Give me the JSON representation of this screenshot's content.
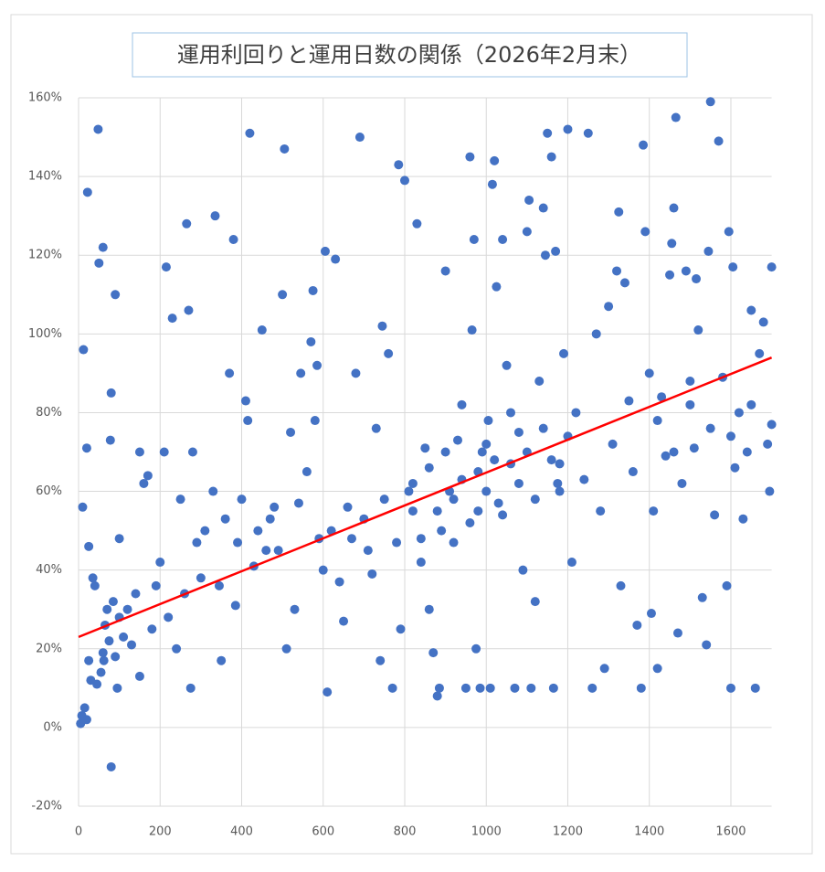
{
  "chart_data": {
    "type": "scatter",
    "title": "運用利回りと運用日数の関係（2026年2月末）",
    "xlim": [
      0,
      1700
    ],
    "xticks": [
      0,
      200,
      400,
      600,
      800,
      1000,
      1200,
      1400,
      1600
    ],
    "ylim": [
      -20,
      160
    ],
    "yticks": [
      {
        "value": -20,
        "label": "-20%"
      },
      {
        "value": 0,
        "label": "0%"
      },
      {
        "value": 20,
        "label": "20%"
      },
      {
        "value": 40,
        "label": "40%"
      },
      {
        "value": 60,
        "label": "60%"
      },
      {
        "value": 80,
        "label": "80%"
      },
      {
        "value": 100,
        "label": "100%"
      },
      {
        "value": 120,
        "label": "120%"
      },
      {
        "value": 140,
        "label": "140%"
      },
      {
        "value": 160,
        "label": "160%"
      }
    ],
    "grid": true,
    "color": "#4472c4",
    "x": [
      5,
      8,
      10,
      12,
      15,
      20,
      22,
      20,
      25,
      25,
      30,
      35,
      40,
      45,
      48,
      50,
      55,
      60,
      60,
      62,
      65,
      70,
      75,
      78,
      80,
      80,
      85,
      90,
      90,
      95,
      100,
      100,
      110,
      120,
      130,
      140,
      150,
      150,
      160,
      170,
      180,
      190,
      200,
      210,
      215,
      220,
      230,
      240,
      250,
      260,
      265,
      270,
      275,
      280,
      290,
      300,
      310,
      330,
      335,
      345,
      350,
      360,
      370,
      380,
      385,
      390,
      400,
      410,
      415,
      420,
      430,
      440,
      450,
      460,
      470,
      480,
      490,
      500,
      505,
      510,
      520,
      530,
      540,
      545,
      560,
      570,
      575,
      580,
      585,
      590,
      600,
      605,
      610,
      620,
      630,
      640,
      650,
      660,
      670,
      680,
      690,
      700,
      710,
      720,
      730,
      740,
      745,
      750,
      760,
      770,
      780,
      785,
      790,
      800,
      810,
      820,
      830,
      840,
      850,
      860,
      870,
      880,
      885,
      890,
      900,
      910,
      920,
      930,
      940,
      950,
      960,
      965,
      970,
      975,
      980,
      985,
      990,
      1000,
      1005,
      1010,
      1015,
      1020,
      1025,
      1030,
      1040,
      1050,
      1060,
      1070,
      1080,
      1090,
      1100,
      1105,
      1110,
      1120,
      1130,
      1140,
      1145,
      1150,
      1160,
      1165,
      1170,
      1175,
      1180,
      1190,
      1200,
      1210,
      1220,
      1240,
      1250,
      1260,
      1270,
      1280,
      1290,
      1300,
      1310,
      1320,
      1325,
      1330,
      1340,
      1350,
      1360,
      1370,
      1380,
      1385,
      1390,
      1400,
      1405,
      1410,
      1420,
      1430,
      1440,
      1450,
      1455,
      1460,
      1465,
      1470,
      1480,
      1490,
      1500,
      1510,
      1515,
      1520,
      1530,
      1540,
      1545,
      1550,
      1560,
      1570,
      1580,
      1590,
      1595,
      1600,
      1605,
      1610,
      1620,
      1630,
      1640,
      1650,
      1660,
      1670,
      1680,
      1690,
      1695,
      1700,
      1700,
      820,
      840,
      860,
      880,
      900,
      920,
      940,
      960,
      980,
      1000,
      1020,
      1040,
      1060,
      1080,
      1100,
      1120,
      1140,
      1160,
      1180,
      1200,
      1420,
      1460,
      1500,
      1550,
      1600,
      1650
    ],
    "values": [
      1,
      3,
      56,
      96,
      5,
      2,
      136,
      71,
      46,
      17,
      12,
      38,
      36,
      11,
      152,
      118,
      14,
      122,
      19,
      17,
      26,
      30,
      22,
      73,
      85,
      -10,
      32,
      110,
      18,
      10,
      48,
      28,
      23,
      30,
      21,
      34,
      70,
      13,
      62,
      64,
      25,
      36,
      42,
      70,
      117,
      28,
      104,
      20,
      58,
      34,
      128,
      106,
      10,
      70,
      47,
      38,
      50,
      60,
      130,
      36,
      17,
      53,
      90,
      124,
      31,
      47,
      58,
      83,
      78,
      151,
      41,
      50,
      101,
      45,
      53,
      56,
      45,
      110,
      147,
      20,
      75,
      30,
      57,
      90,
      65,
      98,
      111,
      78,
      92,
      48,
      40,
      121,
      9,
      50,
      119,
      37,
      27,
      56,
      48,
      90,
      150,
      53,
      45,
      39,
      76,
      17,
      102,
      58,
      95,
      10,
      47,
      143,
      25,
      139,
      60,
      55,
      128,
      42,
      71,
      30,
      19,
      8,
      10,
      50,
      116,
      60,
      47,
      73,
      63,
      10,
      145,
      101,
      124,
      20,
      55,
      10,
      70,
      60,
      78,
      10,
      138,
      144,
      112,
      57,
      124,
      92,
      67,
      10,
      75,
      40,
      126,
      134,
      10,
      32,
      88,
      132,
      120,
      151,
      145,
      10,
      121,
      62,
      67,
      95,
      152,
      42,
      80,
      63,
      151,
      10,
      100,
      55,
      15,
      107,
      72,
      116,
      131,
      36,
      113,
      83,
      65,
      26,
      10,
      148,
      126,
      90,
      29,
      55,
      15,
      84,
      69,
      115,
      123,
      132,
      155,
      24,
      62,
      116,
      82,
      71,
      114,
      101,
      33,
      21,
      121,
      159,
      54,
      149,
      89,
      36,
      126,
      10,
      117,
      66,
      80,
      53,
      70,
      106,
      10,
      95,
      103,
      72,
      60,
      117,
      77,
      62,
      48,
      66,
      55,
      70,
      58,
      82,
      52,
      65,
      72,
      68,
      54,
      80,
      62,
      70,
      58,
      76,
      68,
      60,
      74,
      78,
      70,
      88,
      76,
      74,
      82
    ],
    "trendline": {
      "color": "#ff0000",
      "x": [
        0,
        1700
      ],
      "values": [
        23,
        94
      ]
    }
  }
}
